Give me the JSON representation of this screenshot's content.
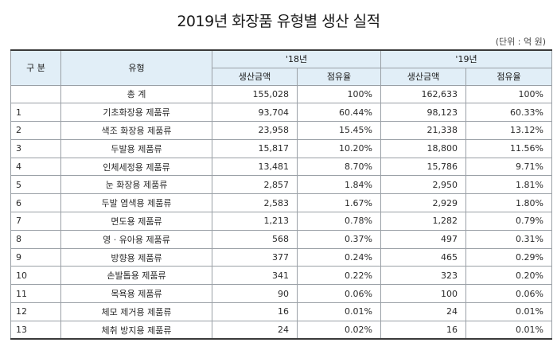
{
  "title": "2019년 화장품 유형별 생산 실적",
  "unit": "(단위 : 억 원)",
  "headers": {
    "no": "구 분",
    "type": "유형",
    "year1": "'18년",
    "year2": "'19년",
    "amount": "생산금액",
    "share": "점유율"
  },
  "rows": [
    {
      "no": "",
      "type": "총 계",
      "amt18": "155,028",
      "pct18": "100%",
      "amt19": "162,633",
      "pct19": "100%"
    },
    {
      "no": "1",
      "type": "기초화장용 제품류",
      "amt18": "93,704",
      "pct18": "60.44%",
      "amt19": "98,123",
      "pct19": "60.33%"
    },
    {
      "no": "2",
      "type": "색조 화장용 제품류",
      "amt18": "23,958",
      "pct18": "15.45%",
      "amt19": "21,338",
      "pct19": "13.12%"
    },
    {
      "no": "3",
      "type": "두발용 제품류",
      "amt18": "15,817",
      "pct18": "10.20%",
      "amt19": "18,800",
      "pct19": "11.56%"
    },
    {
      "no": "4",
      "type": "인체세정용 제품류",
      "amt18": "13,481",
      "pct18": "8.70%",
      "amt19": "15,786",
      "pct19": "9.71%"
    },
    {
      "no": "5",
      "type": "눈 화장용 제품류",
      "amt18": "2,857",
      "pct18": "1.84%",
      "amt19": "2,950",
      "pct19": "1.81%"
    },
    {
      "no": "6",
      "type": "두발 염색용 제품류",
      "amt18": "2,583",
      "pct18": "1.67%",
      "amt19": "2,929",
      "pct19": "1.80%"
    },
    {
      "no": "7",
      "type": "면도용 제품류",
      "amt18": "1,213",
      "pct18": "0.78%",
      "amt19": "1,282",
      "pct19": "0.79%"
    },
    {
      "no": "8",
      "type": "영 · 유아용 제품류",
      "amt18": "568",
      "pct18": "0.37%",
      "amt19": "497",
      "pct19": "0.31%"
    },
    {
      "no": "9",
      "type": "방향용 제품류",
      "amt18": "377",
      "pct18": "0.24%",
      "amt19": "465",
      "pct19": "0.29%"
    },
    {
      "no": "10",
      "type": "손발톱용 제품류",
      "amt18": "341",
      "pct18": "0.22%",
      "amt19": "323",
      "pct19": "0.20%"
    },
    {
      "no": "11",
      "type": "목욕용 제품류",
      "amt18": "90",
      "pct18": "0.06%",
      "amt19": "100",
      "pct19": "0.06%"
    },
    {
      "no": "12",
      "type": "체모 제거용 제품류",
      "amt18": "16",
      "pct18": "0.01%",
      "amt19": "24",
      "pct19": "0.01%"
    },
    {
      "no": "13",
      "type": "체취 방지용 제품류",
      "amt18": "24",
      "pct18": "0.02%",
      "amt19": "16",
      "pct19": "0.01%"
    }
  ]
}
